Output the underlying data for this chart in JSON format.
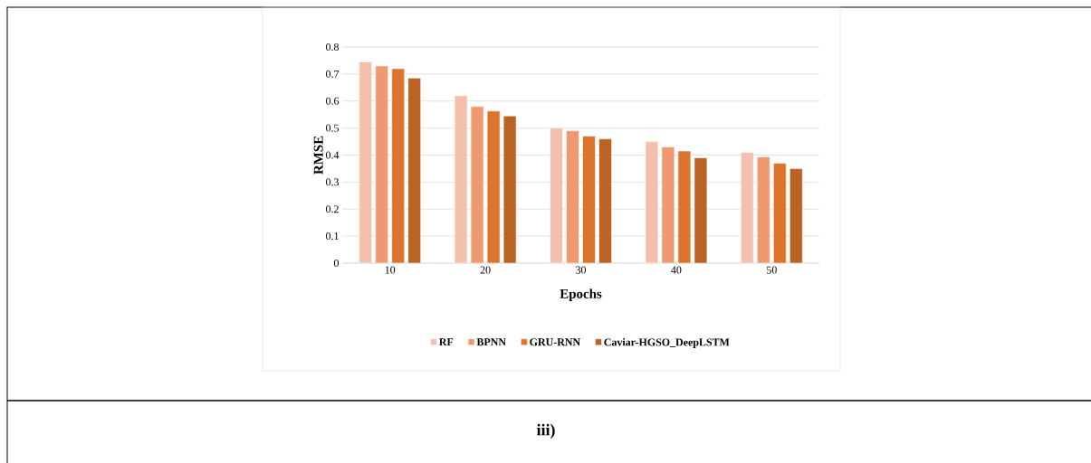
{
  "chart_data": {
    "type": "bar",
    "xlabel": "Epochs",
    "ylabel": "RMSE",
    "categories": [
      "10",
      "20",
      "30",
      "40",
      "50"
    ],
    "series": [
      {
        "name": "RF",
        "color": "#f4c0ae",
        "values": [
          0.745,
          0.62,
          0.5,
          0.45,
          0.41
        ]
      },
      {
        "name": "BPNN",
        "color": "#ef9970",
        "values": [
          0.73,
          0.58,
          0.49,
          0.43,
          0.393
        ]
      },
      {
        "name": "GRU-RNN",
        "color": "#dd742e",
        "values": [
          0.72,
          0.563,
          0.47,
          0.415,
          0.37
        ]
      },
      {
        "name": "Caviar-HGSO_DeepLSTM",
        "color": "#ba6324",
        "values": [
          0.685,
          0.545,
          0.46,
          0.39,
          0.35
        ]
      }
    ],
    "ylim": [
      0,
      0.8
    ],
    "yticks": [
      0,
      0.1,
      0.2,
      0.3,
      0.4,
      0.5,
      0.6,
      0.7,
      0.8
    ],
    "grid": "y",
    "legend": "bottom",
    "annotations": [
      "iii)"
    ]
  }
}
